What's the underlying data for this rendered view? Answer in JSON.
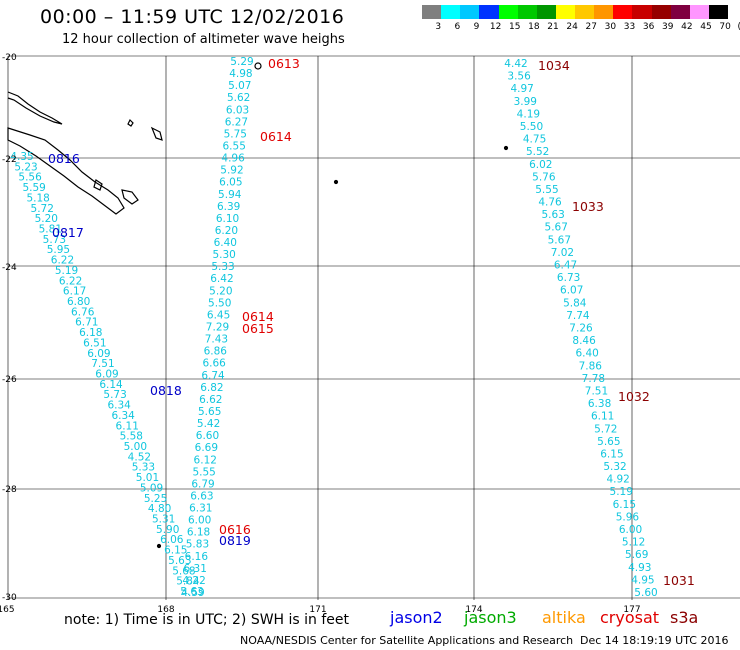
{
  "title": "00:00 – 11:59 UTC 12/02/2016",
  "subtitle": "12 hour collection of altimeter wave heighs",
  "scale": {
    "colors": [
      "#7f7f7f",
      "#00ffff",
      "#00c8ff",
      "#0032ff",
      "#00ff00",
      "#00c800",
      "#009600",
      "#ffff00",
      "#ffc800",
      "#ff9600",
      "#ff0000",
      "#c80000",
      "#960000",
      "#7f0040",
      "#ff96ff",
      "#000000"
    ],
    "labels": [
      "3",
      "6",
      "9",
      "12",
      "15",
      "18",
      "21",
      "24",
      "27",
      "30",
      "33",
      "36",
      "39",
      "42",
      "45",
      "70",
      "(ft)"
    ]
  },
  "axes": {
    "lon_ticks": [
      "165",
      "168",
      "171",
      "174",
      "177"
    ],
    "lat_ticks": [
      "-20",
      "-22",
      "-24",
      "-26",
      "-28",
      "-30"
    ]
  },
  "tracks": [
    {
      "values": [
        "4.35",
        "5.23",
        "5.56",
        "5.59",
        "5.18",
        "5.72",
        "5.20",
        "5.81",
        "5.73",
        "5.95",
        "6.22",
        "5.19",
        "6.22",
        "6.17",
        "6.80",
        "6.76",
        "6.71",
        "6.18",
        "6.51",
        "6.09",
        "7.51",
        "6.09",
        "6.14",
        "5.73",
        "6.34",
        "6.34",
        "6.11",
        "5.58",
        "5.00",
        "4.52",
        "5.33",
        "5.01",
        "5.09",
        "5.25",
        "4.80",
        "5.31",
        "5.90",
        "6.06",
        "6.15",
        "5.63",
        "5.68",
        "5.84",
        "5.63"
      ]
    },
    {
      "values": [
        "5.29",
        "4.98",
        "5.07",
        "5.62",
        "6.03",
        "6.27",
        "5.75",
        "6.55",
        "4.96",
        "5.92",
        "6.05",
        "5.94",
        "6.39",
        "6.10",
        "6.20",
        "6.40",
        "5.30",
        "5.33",
        "6.42",
        "5.20",
        "5.50",
        "6.45",
        "7.29",
        "7.43",
        "6.86",
        "6.66",
        "6.74",
        "6.82",
        "6.62",
        "5.65",
        "5.42",
        "6.60",
        "6.69",
        "6.12",
        "5.55",
        "6.79",
        "6.63",
        "6.31",
        "6.00",
        "6.18",
        "5.83",
        "6.16",
        "6.31",
        "4.22",
        "4.59"
      ]
    },
    {
      "values": [
        "4.42",
        "3.56",
        "4.97",
        "3.99",
        "4.19",
        "5.50",
        "4.75",
        "5.52",
        "6.02",
        "5.76",
        "5.55",
        "4.76",
        "5.63",
        "5.67",
        "5.67",
        "7.02",
        "6.47",
        "6.73",
        "6.07",
        "5.84",
        "7.74",
        "7.26",
        "8.46",
        "6.40",
        "7.86",
        "7.78",
        "7.51",
        "6.38",
        "6.11",
        "5.72",
        "5.65",
        "6.15",
        "5.32",
        "4.92",
        "5.19",
        "6.15",
        "5.96",
        "6.00",
        "5.12",
        "5.69",
        "4.93",
        "4.95",
        "5.60"
      ]
    }
  ],
  "pass_labels": [
    {
      "text": "0816",
      "color": "#0000c8"
    },
    {
      "text": "0817",
      "color": "#0000c8"
    },
    {
      "text": "0818",
      "color": "#0000c8"
    },
    {
      "text": "0819",
      "color": "#0000c8"
    },
    {
      "text": "0613",
      "color": "#e00000"
    },
    {
      "text": "0614",
      "color": "#e00000"
    },
    {
      "text": "0614",
      "color": "#e00000"
    },
    {
      "text": "0615",
      "color": "#e00000"
    },
    {
      "text": "0616",
      "color": "#e00000"
    },
    {
      "text": "1034",
      "color": "#8b0000"
    },
    {
      "text": "1033",
      "color": "#8b0000"
    },
    {
      "text": "1032",
      "color": "#8b0000"
    },
    {
      "text": "1031",
      "color": "#8b0000"
    }
  ],
  "note": "note: 1) Time is in UTC; 2) SWH is in feet",
  "legend": [
    {
      "name": "jason2",
      "color": "#0000e6"
    },
    {
      "name": "jason3",
      "color": "#00aa00"
    },
    {
      "name": "altika",
      "color": "#ff9900"
    },
    {
      "name": "cryosat",
      "color": "#e00000"
    },
    {
      "name": "s3a",
      "color": "#8b0000"
    }
  ],
  "footer": "NOAA/NESDIS Center for Satellite Applications and Research",
  "timestamp": "Dec 14 18:19:19 UTC 2016"
}
